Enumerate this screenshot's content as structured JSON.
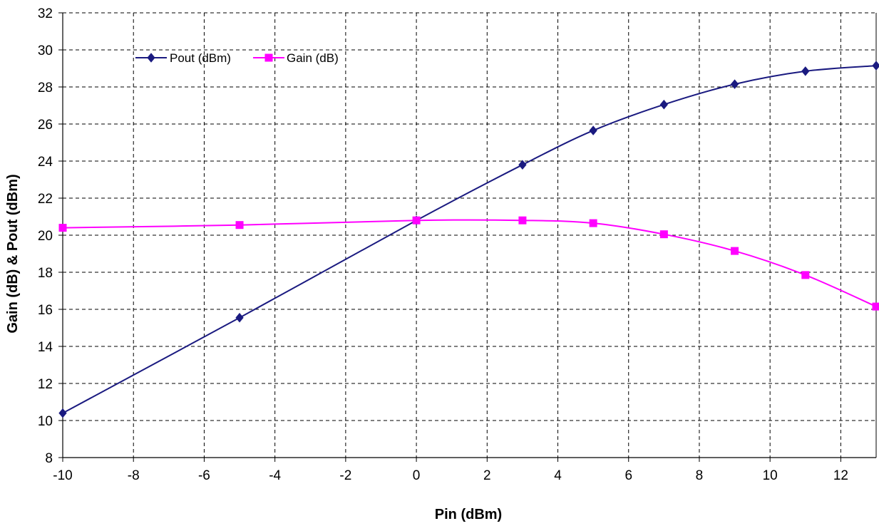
{
  "chart_data": {
    "type": "line",
    "title": "",
    "xlabel": "Pin (dBm)",
    "ylabel": "Gain (dB) & Pout (dBm)",
    "xlim": [
      -10,
      13
    ],
    "ylim": [
      8,
      32
    ],
    "xticks": [
      -10,
      -8,
      -6,
      -4,
      -2,
      0,
      2,
      4,
      6,
      8,
      10,
      12
    ],
    "yticks": [
      8,
      10,
      12,
      14,
      16,
      18,
      20,
      22,
      24,
      26,
      28,
      30,
      32
    ],
    "grid": true,
    "legend_position": "top-left",
    "series": [
      {
        "name": "Pout (dBm)",
        "color": "#1a1a80",
        "marker": "diamond",
        "x": [
          -10,
          -5,
          0,
          3,
          5,
          7,
          9,
          11,
          13
        ],
        "y": [
          10.4,
          15.55,
          20.8,
          23.8,
          25.65,
          27.05,
          28.15,
          28.85,
          29.15
        ]
      },
      {
        "name": "Gain (dB)",
        "color": "#ff00ff",
        "marker": "square",
        "x": [
          -10,
          -5,
          0,
          3,
          5,
          7,
          9,
          11,
          13
        ],
        "y": [
          20.4,
          20.55,
          20.8,
          20.8,
          20.65,
          20.05,
          19.15,
          17.85,
          16.15
        ]
      }
    ]
  }
}
